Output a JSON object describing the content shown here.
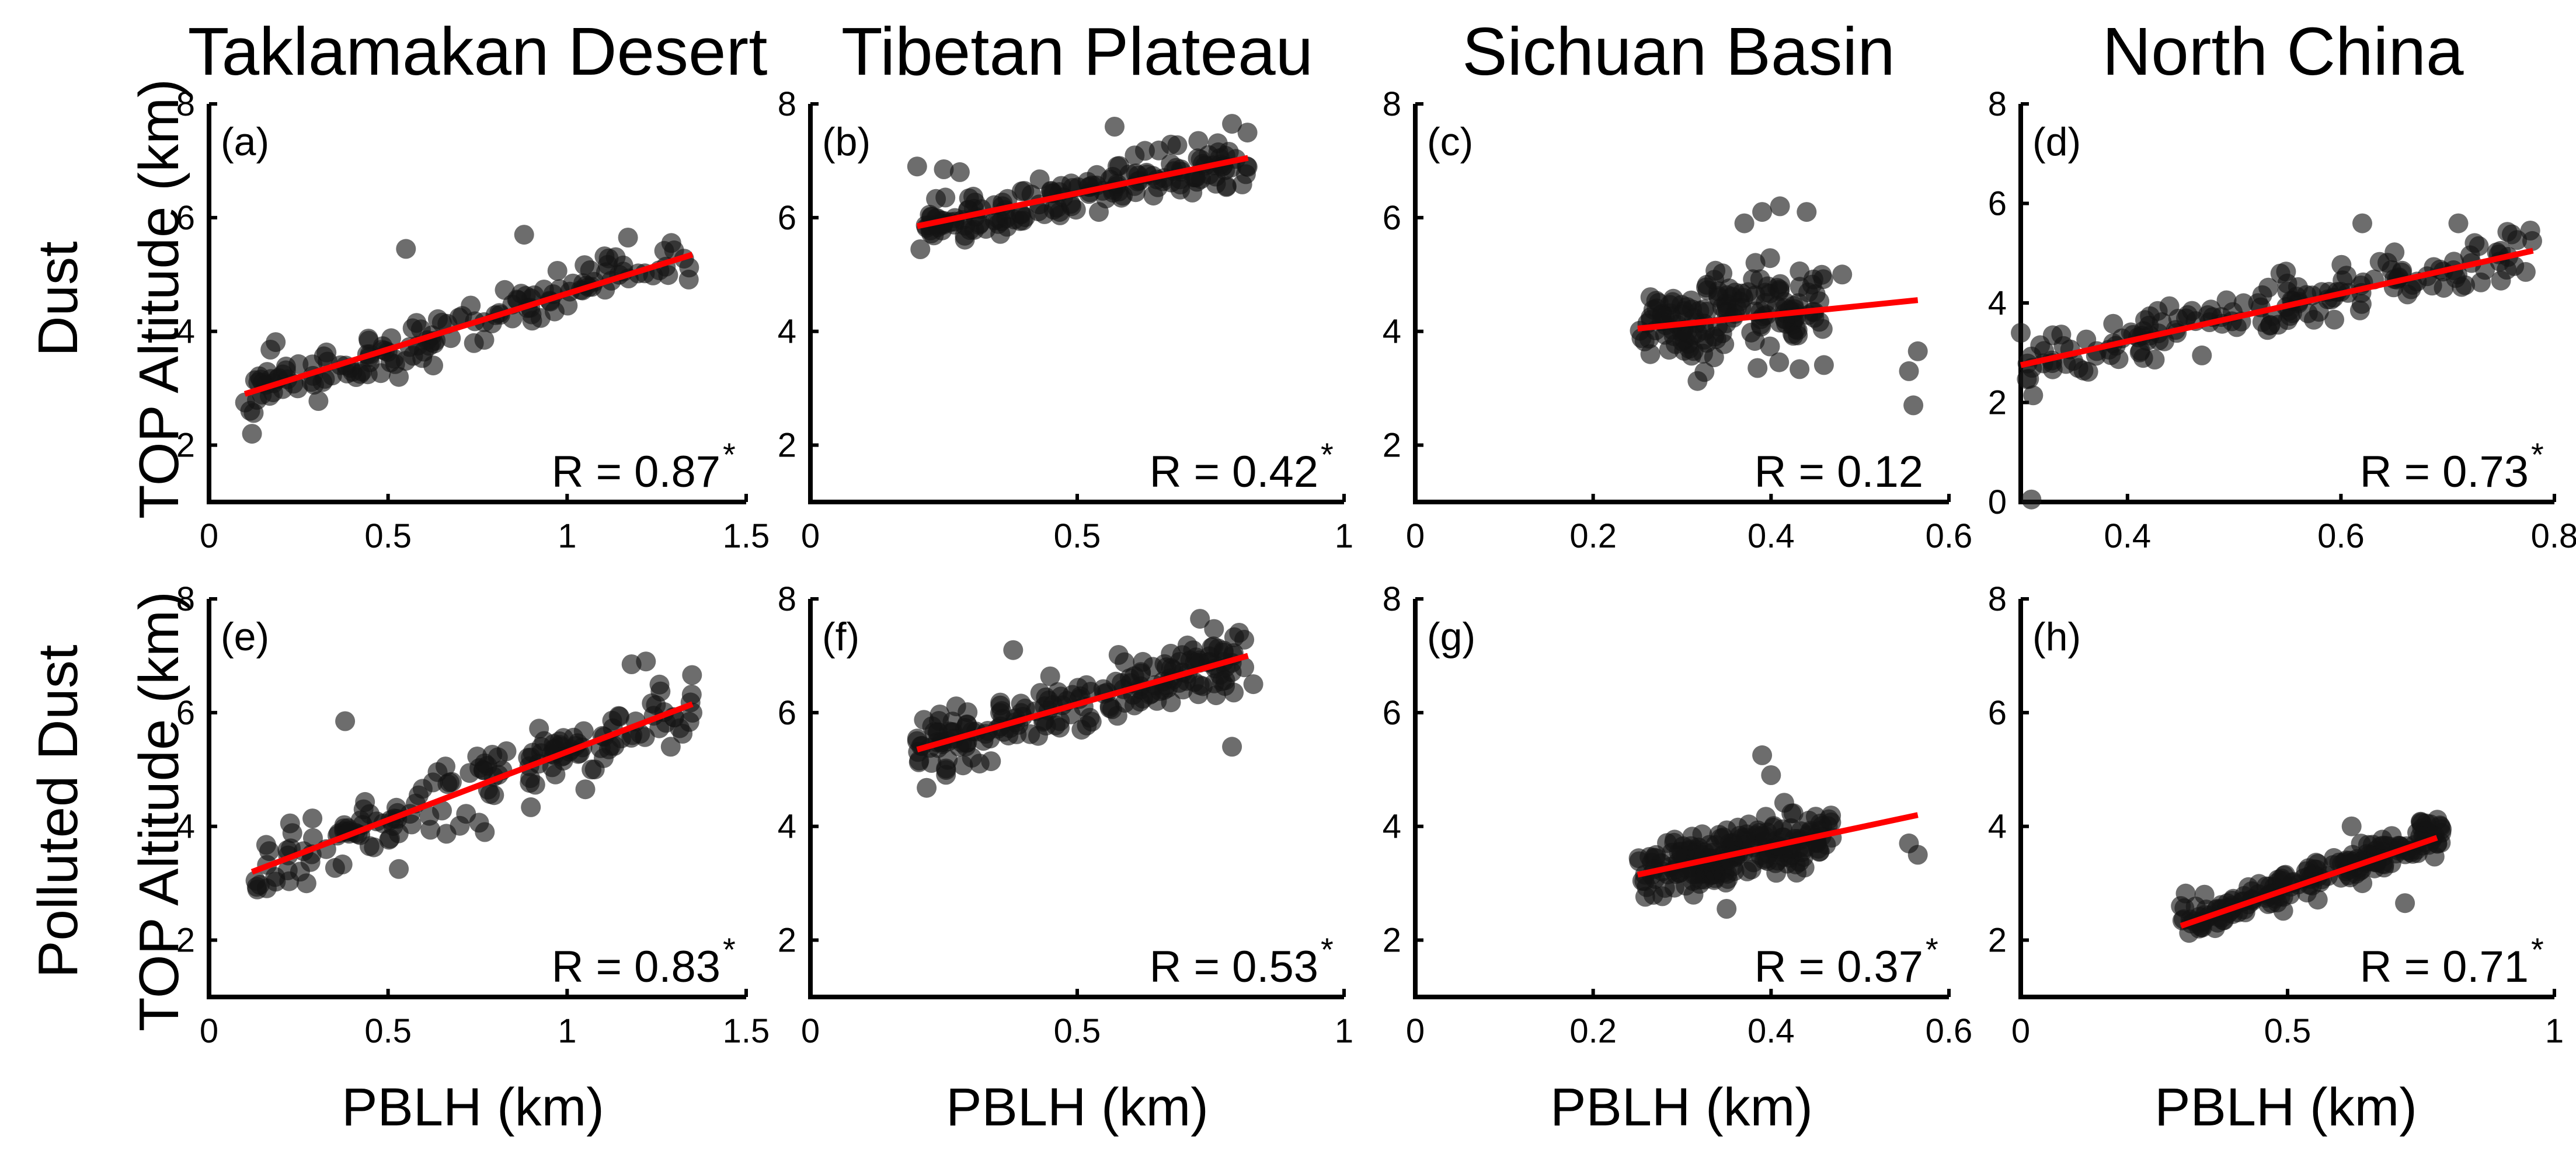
{
  "figure": {
    "columns": [
      "Taklamakan Desert",
      "Tibetan Plateau",
      "Sichuan Basin",
      "North China"
    ],
    "rows": [
      {
        "name": "Dust",
        "ylabel": "TOP Altitude (km)"
      },
      {
        "name": "Polluted Dust",
        "ylabel": "TOP Altitude (km)"
      }
    ],
    "xlabel": "PBLH (km)",
    "fit_color": "#ff0000",
    "point_color": "#141414"
  },
  "chart_data": [
    {
      "type": "scatter",
      "panel": "(a)",
      "region": "Taklamakan Desert",
      "aerosol": "Dust",
      "xlim": [
        0,
        1.5
      ],
      "xticks": [
        0,
        0.5,
        1,
        1.5
      ],
      "xticklabels": [
        "0",
        "0.5",
        "1",
        "1.5"
      ],
      "ylim": [
        1,
        8
      ],
      "yticks": [
        2,
        4,
        6,
        8
      ],
      "yticklabels": [
        "2",
        "4",
        "6",
        "8"
      ],
      "fit": {
        "x": [
          0.1,
          1.35
        ],
        "y": [
          2.9,
          5.35
        ]
      },
      "r_label": "R = 0.87",
      "significant": true,
      "sig_marker": "*",
      "cloud": {
        "seed": 11,
        "n": 150,
        "xmin": 0.1,
        "xmax": 1.35,
        "fit_x": [
          0.1,
          1.35
        ],
        "fit_y": [
          2.9,
          5.35
        ],
        "spread": 0.38
      },
      "extra_points": [
        [
          0.55,
          5.45
        ],
        [
          0.88,
          5.7
        ],
        [
          1.17,
          5.65
        ],
        [
          0.12,
          2.2
        ],
        [
          0.53,
          3.2
        ]
      ]
    },
    {
      "type": "scatter",
      "panel": "(b)",
      "region": "Tibetan Plateau",
      "aerosol": "Dust",
      "xlim": [
        0,
        1
      ],
      "xticks": [
        0,
        0.5,
        1
      ],
      "xticklabels": [
        "0",
        "0.5",
        "1"
      ],
      "ylim": [
        1,
        8
      ],
      "yticks": [
        2,
        4,
        6,
        8
      ],
      "yticklabels": [
        "2",
        "4",
        "6",
        "8"
      ],
      "fit": {
        "x": [
          0.2,
          0.82
        ],
        "y": [
          5.85,
          7.05
        ]
      },
      "r_label": "R = 0.42",
      "significant": true,
      "sig_marker": "*",
      "cloud": {
        "seed": 23,
        "n": 170,
        "xmin": 0.2,
        "xmax": 0.82,
        "fit_x": [
          0.2,
          0.82
        ],
        "fit_y": [
          5.85,
          7.05
        ],
        "spread": 0.36
      },
      "extra_points": [
        [
          0.2,
          6.9
        ],
        [
          0.25,
          6.85
        ],
        [
          0.57,
          7.6
        ],
        [
          0.79,
          7.65
        ],
        [
          0.28,
          6.8
        ]
      ]
    },
    {
      "type": "scatter",
      "panel": "(c)",
      "region": "Sichuan Basin",
      "aerosol": "Dust",
      "xlim": [
        0,
        0.6
      ],
      "xticks": [
        0,
        0.2,
        0.4,
        0.6
      ],
      "xticklabels": [
        "0",
        "0.2",
        "0.4",
        "0.6"
      ],
      "ylim": [
        1,
        8
      ],
      "yticks": [
        2,
        4,
        6,
        8
      ],
      "yticklabels": [
        "2",
        "4",
        "6",
        "8"
      ],
      "fit": {
        "x": [
          0.25,
          0.565
        ],
        "y": [
          4.05,
          4.55
        ]
      },
      "r_label": "R = 0.12",
      "significant": false,
      "sig_marker": "",
      "cloud": {
        "seed": 37,
        "n": 160,
        "xmin": 0.25,
        "xmax": 0.46,
        "fit_x": [
          0.25,
          0.565
        ],
        "fit_y": [
          4.05,
          4.55
        ],
        "spread": 0.75
      },
      "extra_points": [
        [
          0.41,
          6.2
        ],
        [
          0.44,
          6.1
        ],
        [
          0.39,
          6.1
        ],
        [
          0.555,
          3.3
        ],
        [
          0.565,
          3.65
        ],
        [
          0.56,
          2.7
        ],
        [
          0.48,
          5.0
        ],
        [
          0.37,
          5.9
        ]
      ]
    },
    {
      "type": "scatter",
      "panel": "(d)",
      "region": "North China",
      "aerosol": "Dust",
      "xlim": [
        0.3,
        0.8
      ],
      "xticks": [
        0.4,
        0.6,
        0.8
      ],
      "xticklabels": [
        "0.4",
        "0.6",
        "0.8"
      ],
      "ylim": [
        0,
        8
      ],
      "yticks": [
        0,
        2,
        4,
        6,
        8
      ],
      "yticklabels": [
        "0",
        "2",
        "4",
        "6",
        "8"
      ],
      "fit": {
        "x": [
          0.3,
          0.78
        ],
        "y": [
          2.75,
          5.05
        ]
      },
      "r_label": "R = 0.73",
      "significant": true,
      "sig_marker": "*",
      "cloud": {
        "seed": 41,
        "n": 165,
        "xmin": 0.3,
        "xmax": 0.78,
        "fit_x": [
          0.3,
          0.78
        ],
        "fit_y": [
          2.75,
          5.05
        ],
        "spread": 0.48
      },
      "extra_points": [
        [
          0.31,
          0.05
        ],
        [
          0.62,
          5.6
        ],
        [
          0.71,
          5.6
        ],
        [
          0.3,
          3.4
        ],
        [
          0.33,
          3.35
        ]
      ]
    },
    {
      "type": "scatter",
      "panel": "(e)",
      "region": "Taklamakan Desert",
      "aerosol": "Polluted Dust",
      "xlim": [
        0,
        1.5
      ],
      "xticks": [
        0,
        0.5,
        1,
        1.5
      ],
      "xticklabels": [
        "0",
        "0.5",
        "1",
        "1.5"
      ],
      "ylim": [
        1,
        8
      ],
      "yticks": [
        2,
        4,
        6,
        8
      ],
      "yticklabels": [
        "2",
        "4",
        "6",
        "8"
      ],
      "fit": {
        "x": [
          0.12,
          1.35
        ],
        "y": [
          3.2,
          6.15
        ]
      },
      "r_label": "R = 0.83",
      "significant": true,
      "sig_marker": "*",
      "cloud": {
        "seed": 53,
        "n": 165,
        "xmin": 0.12,
        "xmax": 1.35,
        "fit_x": [
          0.12,
          1.35
        ],
        "fit_y": [
          3.2,
          6.15
        ],
        "spread": 0.5
      },
      "extra_points": [
        [
          0.38,
          5.85
        ],
        [
          1.18,
          6.85
        ],
        [
          1.22,
          6.9
        ],
        [
          0.53,
          3.25
        ],
        [
          0.77,
          3.9
        ]
      ]
    },
    {
      "type": "scatter",
      "panel": "(f)",
      "region": "Tibetan Plateau",
      "aerosol": "Polluted Dust",
      "xlim": [
        0,
        1
      ],
      "xticks": [
        0,
        0.5,
        1
      ],
      "xticklabels": [
        "0",
        "0.5",
        "1"
      ],
      "ylim": [
        1,
        8
      ],
      "yticks": [
        2,
        4,
        6,
        8
      ],
      "yticklabels": [
        "2",
        "4",
        "6",
        "8"
      ],
      "fit": {
        "x": [
          0.2,
          0.82
        ],
        "y": [
          5.35,
          7.0
        ]
      },
      "r_label": "R = 0.53",
      "significant": true,
      "sig_marker": "*",
      "cloud": {
        "seed": 67,
        "n": 190,
        "xmin": 0.2,
        "xmax": 0.82,
        "fit_x": [
          0.2,
          0.82
        ],
        "fit_y": [
          5.35,
          7.0
        ],
        "spread": 0.45
      },
      "extra_points": [
        [
          0.38,
          7.1
        ],
        [
          0.73,
          7.65
        ],
        [
          0.79,
          5.4
        ],
        [
          0.2,
          5.5
        ],
        [
          0.83,
          6.5
        ]
      ]
    },
    {
      "type": "scatter",
      "panel": "(g)",
      "region": "Sichuan Basin",
      "aerosol": "Polluted Dust",
      "xlim": [
        0,
        0.6
      ],
      "xticks": [
        0,
        0.2,
        0.4,
        0.6
      ],
      "xticklabels": [
        "0",
        "0.2",
        "0.4",
        "0.6"
      ],
      "ylim": [
        1,
        8
      ],
      "yticks": [
        2,
        4,
        6,
        8
      ],
      "yticklabels": [
        "2",
        "4",
        "6",
        "8"
      ],
      "fit": {
        "x": [
          0.25,
          0.565
        ],
        "y": [
          3.15,
          4.2
        ]
      },
      "r_label": "R = 0.37",
      "significant": true,
      "sig_marker": "*",
      "cloud": {
        "seed": 79,
        "n": 200,
        "xmin": 0.25,
        "xmax": 0.47,
        "fit_x": [
          0.25,
          0.565
        ],
        "fit_y": [
          3.15,
          4.2
        ],
        "spread": 0.42
      },
      "extra_points": [
        [
          0.39,
          5.25
        ],
        [
          0.4,
          4.9
        ],
        [
          0.555,
          3.7
        ],
        [
          0.565,
          3.5
        ],
        [
          0.35,
          2.55
        ]
      ]
    },
    {
      "type": "scatter",
      "panel": "(h)",
      "region": "North China",
      "aerosol": "Polluted Dust",
      "xlim": [
        0,
        1
      ],
      "xticks": [
        0,
        0.5,
        1
      ],
      "xticklabels": [
        "0",
        "0.5",
        "1"
      ],
      "ylim": [
        1,
        8
      ],
      "yticks": [
        2,
        4,
        6,
        8
      ],
      "yticklabels": [
        "2",
        "4",
        "6",
        "8"
      ],
      "fit": {
        "x": [
          0.3,
          0.78
        ],
        "y": [
          2.25,
          3.8
        ]
      },
      "r_label": "R = 0.71",
      "significant": true,
      "sig_marker": "*",
      "cloud": {
        "seed": 97,
        "n": 200,
        "xmin": 0.3,
        "xmax": 0.79,
        "fit_x": [
          0.3,
          0.78
        ],
        "fit_y": [
          2.25,
          3.8
        ],
        "spread": 0.32
      },
      "extra_points": [
        [
          0.3,
          2.6
        ],
        [
          0.62,
          4.0
        ],
        [
          0.76,
          4.05
        ],
        [
          0.72,
          2.65
        ]
      ]
    }
  ]
}
